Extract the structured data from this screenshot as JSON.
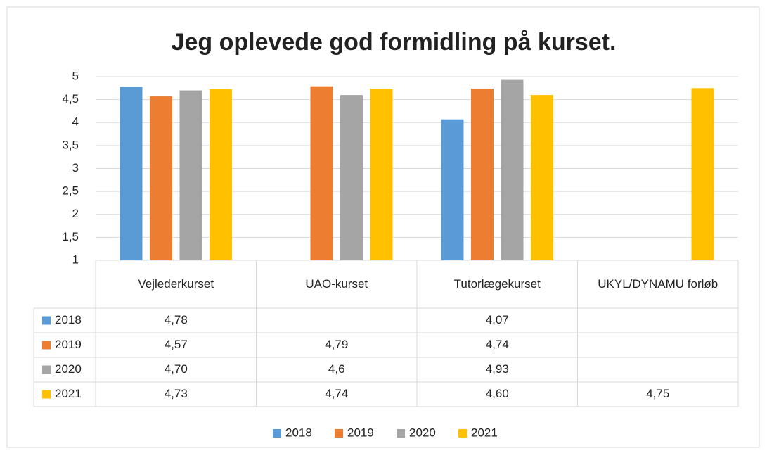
{
  "chart_data": {
    "type": "bar",
    "title": "Jeg oplevede god formidling på kurset.",
    "categories": [
      "Vejlederkurset",
      "UAO-kurset",
      "Tutorlægekurset",
      "UKYL/DYNAMU forløb"
    ],
    "series": [
      {
        "name": "2018",
        "color": "#5b9bd5",
        "values": [
          4.78,
          null,
          4.07,
          null
        ],
        "value_labels": [
          "4,78",
          null,
          "4,07",
          null
        ]
      },
      {
        "name": "2019",
        "color": "#ed7d31",
        "values": [
          4.57,
          4.79,
          4.74,
          null
        ],
        "value_labels": [
          "4,57",
          "4,79",
          "4,74",
          null
        ]
      },
      {
        "name": "2020",
        "color": "#a5a5a5",
        "values": [
          4.7,
          4.6,
          4.93,
          null
        ],
        "value_labels": [
          "4,70",
          "4,6",
          "4,93",
          null
        ]
      },
      {
        "name": "2021",
        "color": "#ffc000",
        "values": [
          4.73,
          4.74,
          4.6,
          4.75
        ],
        "value_labels": [
          "4,73",
          "4,74",
          "4,60",
          "4,75"
        ]
      }
    ],
    "ylim": [
      1,
      5
    ],
    "yticks": [
      1,
      {
        "value": 1.5,
        "label": "1,5"
      },
      2,
      {
        "value": 2.5,
        "label": "2,5"
      },
      3,
      {
        "value": 3.5,
        "label": "3,5"
      },
      4,
      {
        "value": 4.5,
        "label": "4,5"
      },
      5
    ],
    "grid": true,
    "legend": "bottom",
    "data_table": true
  }
}
